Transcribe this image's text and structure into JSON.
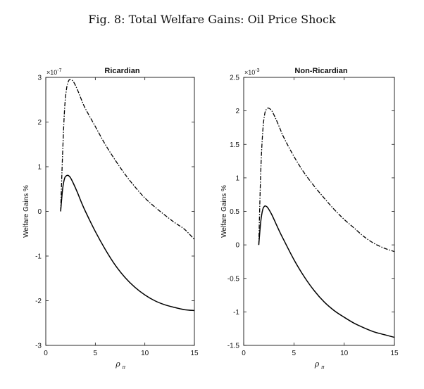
{
  "figure_title": "Fig. 8: Total Welfare Gains: Oil Price Shock",
  "chart_data": [
    {
      "type": "line",
      "title": "Ricardian",
      "xlabel": "ρπ",
      "xlabel_symbol": "ρ",
      "xlabel_subscript": "π",
      "ylabel": "Welfare Gains %",
      "scale_base": "×10",
      "scale_exponent": "-7",
      "xlim": [
        0,
        15
      ],
      "ylim": [
        -3,
        3
      ],
      "xticks": [
        0,
        5,
        10,
        15
      ],
      "yticks": [
        -3,
        -2,
        -1,
        0,
        1,
        2,
        3
      ],
      "grid": false,
      "series": [
        {
          "style": "dash-dot",
          "x": [
            1.5,
            1.7,
            1.9,
            2.1,
            2.3,
            2.5,
            2.8,
            3.2,
            3.6,
            4.0,
            5.0,
            6.0,
            7.0,
            8.0,
            9.0,
            10.0,
            11.0,
            12.0,
            13.0,
            14.0,
            15.0
          ],
          "y": [
            0.0,
            1.3,
            2.3,
            2.75,
            2.92,
            2.95,
            2.9,
            2.72,
            2.5,
            2.3,
            1.9,
            1.5,
            1.15,
            0.83,
            0.55,
            0.3,
            0.1,
            -0.08,
            -0.25,
            -0.4,
            -0.63
          ]
        },
        {
          "style": "solid",
          "x": [
            1.5,
            1.7,
            1.9,
            2.1,
            2.3,
            2.5,
            2.8,
            3.2,
            3.6,
            4.0,
            5.0,
            6.0,
            7.0,
            8.0,
            9.0,
            10.0,
            11.0,
            12.0,
            13.0,
            14.0,
            15.0
          ],
          "y": [
            0.0,
            0.5,
            0.74,
            0.8,
            0.8,
            0.75,
            0.62,
            0.42,
            0.2,
            0.0,
            -0.45,
            -0.85,
            -1.2,
            -1.48,
            -1.7,
            -1.87,
            -2.0,
            -2.09,
            -2.15,
            -2.2,
            -2.22
          ]
        }
      ]
    },
    {
      "type": "line",
      "title": "Non-Ricardian",
      "xlabel": "ρπ",
      "xlabel_symbol": "ρ",
      "xlabel_subscript": "π",
      "ylabel": "Welfare Gains %",
      "scale_base": "×10",
      "scale_exponent": "-3",
      "xlim": [
        0,
        15
      ],
      "ylim": [
        -1.5,
        2.5
      ],
      "xticks": [
        0,
        5,
        10,
        15
      ],
      "yticks": [
        -1.5,
        -1,
        -0.5,
        0,
        0.5,
        1,
        1.5,
        2,
        2.5
      ],
      "grid": false,
      "series": [
        {
          "style": "dash-dot",
          "x": [
            1.5,
            1.7,
            1.9,
            2.1,
            2.3,
            2.5,
            2.8,
            3.2,
            3.6,
            4.0,
            5.0,
            6.0,
            7.0,
            8.0,
            9.0,
            10.0,
            11.0,
            12.0,
            13.0,
            14.0,
            15.0
          ],
          "y": [
            0.0,
            1.1,
            1.7,
            1.96,
            2.03,
            2.04,
            2.0,
            1.88,
            1.74,
            1.6,
            1.32,
            1.08,
            0.88,
            0.7,
            0.53,
            0.38,
            0.25,
            0.12,
            0.02,
            -0.05,
            -0.1
          ]
        },
        {
          "style": "solid",
          "x": [
            1.5,
            1.7,
            1.9,
            2.1,
            2.3,
            2.5,
            2.8,
            3.2,
            3.6,
            4.0,
            5.0,
            6.0,
            7.0,
            8.0,
            9.0,
            10.0,
            11.0,
            12.0,
            13.0,
            14.0,
            15.0
          ],
          "y": [
            0.0,
            0.35,
            0.53,
            0.58,
            0.57,
            0.53,
            0.45,
            0.32,
            0.19,
            0.07,
            -0.22,
            -0.47,
            -0.68,
            -0.85,
            -0.98,
            -1.08,
            -1.17,
            -1.24,
            -1.3,
            -1.34,
            -1.38
          ]
        }
      ]
    }
  ]
}
